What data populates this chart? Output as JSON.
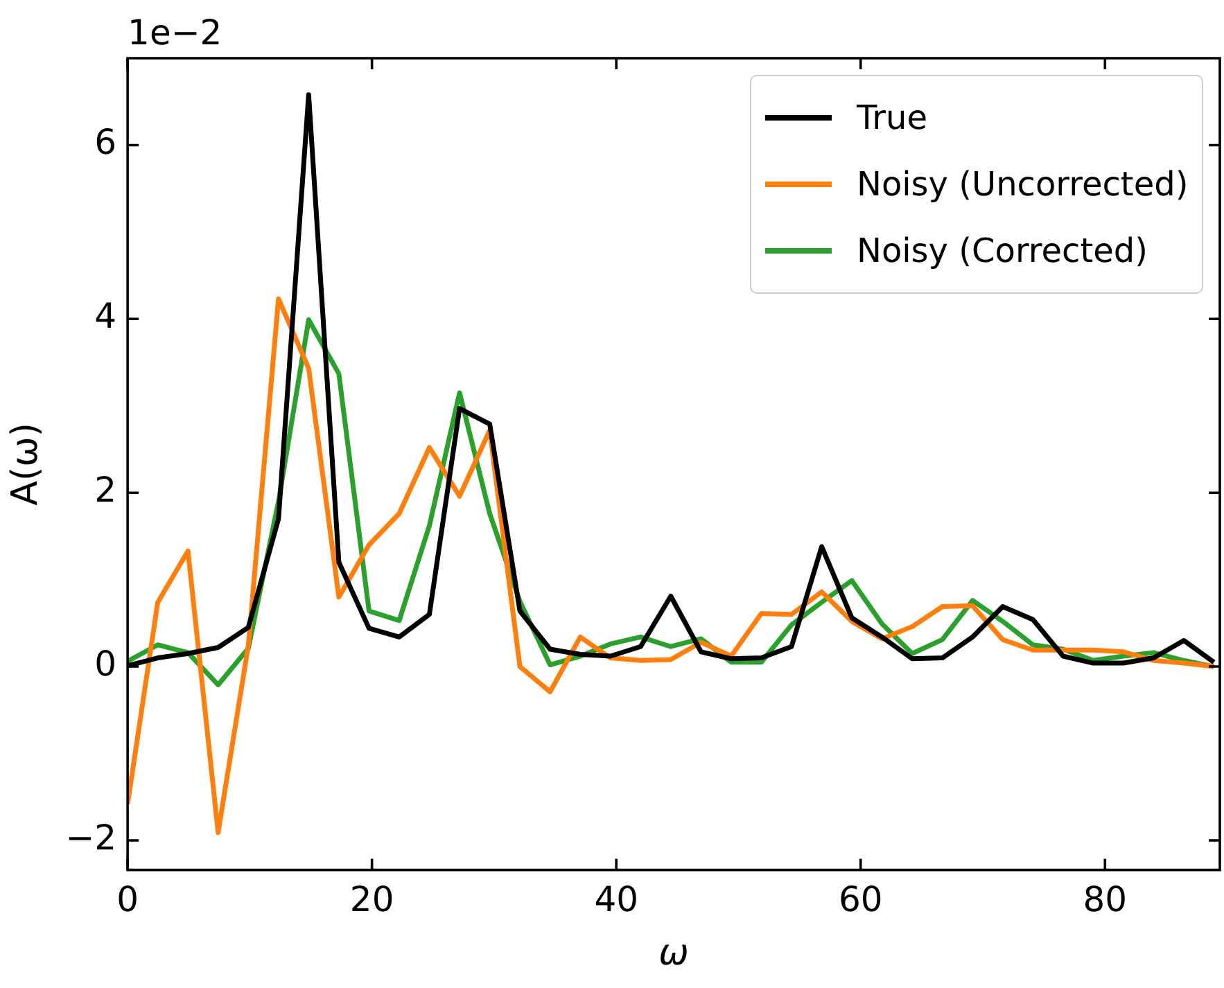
{
  "chart_data": {
    "type": "line",
    "xlabel": "ω",
    "ylabel": "A(ω)",
    "annotations": [
      "1e−2"
    ],
    "x": [
      0,
      2.47,
      4.94,
      7.41,
      9.88,
      12.35,
      14.82,
      17.29,
      19.76,
      22.23,
      24.7,
      27.17,
      29.64,
      32.11,
      34.58,
      37.05,
      39.52,
      41.99,
      44.46,
      46.93,
      49.4,
      51.87,
      54.34,
      56.81,
      59.28,
      61.75,
      64.22,
      66.69,
      69.16,
      71.63,
      74.1,
      76.57,
      79.04,
      81.51,
      83.98,
      86.45,
      88.92
    ],
    "xlim": [
      0,
      89.4
    ],
    "xticks": [
      0,
      20,
      40,
      60,
      80
    ],
    "ylim": [
      -2.34,
      7.0
    ],
    "yticks": [
      {
        "value": -2,
        "label": "−2"
      },
      0,
      2,
      4,
      6
    ],
    "grid": false,
    "legend": "top right",
    "line_style": "solid",
    "marker": "none",
    "series": [
      {
        "name": "True",
        "color": "#000000",
        "values": [
          0.01,
          0.1,
          0.15,
          0.22,
          0.45,
          1.7,
          6.58,
          1.2,
          0.44,
          0.34,
          0.6,
          2.97,
          2.79,
          0.64,
          0.2,
          0.14,
          0.12,
          0.23,
          0.81,
          0.17,
          0.09,
          0.1,
          0.23,
          1.38,
          0.56,
          0.34,
          0.09,
          0.1,
          0.34,
          0.69,
          0.54,
          0.12,
          0.04,
          0.04,
          0.1,
          0.3,
          0.05
        ]
      },
      {
        "name": "Noisy (Uncorrected)",
        "color": "#ff7f0e",
        "values": [
          -1.58,
          0.74,
          1.33,
          -1.91,
          0.24,
          4.23,
          3.43,
          0.8,
          1.4,
          1.76,
          2.52,
          1.96,
          2.72,
          0.0,
          -0.29,
          0.34,
          0.1,
          0.07,
          0.08,
          0.28,
          0.12,
          0.61,
          0.6,
          0.86,
          0.52,
          0.32,
          0.46,
          0.69,
          0.7,
          0.31,
          0.19,
          0.19,
          0.19,
          0.17,
          0.07,
          0.04,
          0.0
        ]
      },
      {
        "name": "Noisy (Corrected)",
        "color": "#2ca02c",
        "values": [
          0.06,
          0.25,
          0.16,
          -0.21,
          0.21,
          1.9,
          3.99,
          3.37,
          0.64,
          0.53,
          1.62,
          3.15,
          1.76,
          0.75,
          0.02,
          0.12,
          0.26,
          0.34,
          0.23,
          0.32,
          0.05,
          0.05,
          0.48,
          0.74,
          0.99,
          0.49,
          0.15,
          0.31,
          0.76,
          0.52,
          0.25,
          0.2,
          0.07,
          0.12,
          0.16,
          0.07,
          0.0
        ]
      }
    ]
  }
}
